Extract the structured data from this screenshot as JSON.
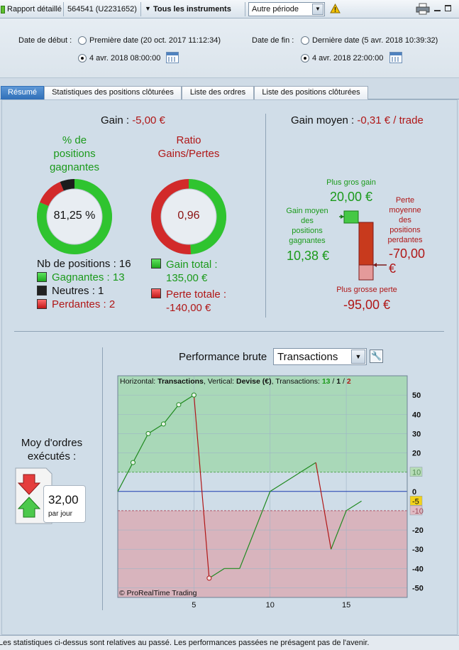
{
  "toolbar": {
    "title": "Rapport détaillé",
    "account": "564541 (U2231652)",
    "instruments": "Tous les instruments",
    "period": "Autre période"
  },
  "dates": {
    "start_label": "Date de début :",
    "start_option1": "Première date (20 oct. 2017 11:12:34)",
    "start_option2": "4 avr. 2018 08:00:00",
    "end_label": "Date de fin :",
    "end_option1": "Dernière date (5 avr. 2018 10:39:32)",
    "end_option2": "4 avr. 2018 22:00:00",
    "start_selected": 2,
    "end_selected": 2
  },
  "tabs": [
    {
      "label": "Résumé",
      "active": true
    },
    {
      "label": "Statistiques des positions clôturées",
      "active": false
    },
    {
      "label": "Liste des ordres",
      "active": false
    },
    {
      "label": "Liste des positions clôturées",
      "active": false
    }
  ],
  "summary": {
    "gain_label": "Gain : ",
    "gain_value": "-5,00 €",
    "pct_title_1": "% de",
    "pct_title_2": "positions",
    "pct_title_3": "gagnantes",
    "pct_value": "81,25 %",
    "ratio_title_1": "Ratio",
    "ratio_title_2": "Gains/Pertes",
    "ratio_value": "0,96",
    "nb_positions": "Nb de positions : 16",
    "gagnantes": "Gagnantes : 13",
    "neutres": "Neutres : 1",
    "perdantes": "Perdantes : 2",
    "gain_total_label": "Gain total :",
    "gain_total_value": "135,00 €",
    "perte_totale_label": "Perte totale :",
    "perte_totale_value": "-140,00 €",
    "donut_pct": {
      "win": 13,
      "neutral": 1,
      "loss": 2
    },
    "donut_ratio": {
      "gain": 135,
      "loss": 140
    }
  },
  "average": {
    "title_label": "Gain moyen : ",
    "title_value": "-0,31 € / trade",
    "biggest_gain_label": "Plus gros gain",
    "biggest_gain_value": "20,00 €",
    "avg_win_label_1": "Gain moyen",
    "avg_win_label_2": "des",
    "avg_win_label_3": "positions",
    "avg_win_label_4": "gagnantes",
    "avg_win_value": "10,38 €",
    "avg_loss_label_1": "Perte",
    "avg_loss_label_2": "moyenne",
    "avg_loss_label_3": "des",
    "avg_loss_label_4": "positions",
    "avg_loss_label_5": "perdantes",
    "avg_loss_value_1": "-70,00",
    "avg_loss_value_2": "€",
    "biggest_loss_label": "Plus grosse perte",
    "biggest_loss_value": "-95,00 €"
  },
  "orders": {
    "title_1": "Moy d'ordres",
    "title_2": "exécutés :",
    "value": "32,00",
    "unit": "par jour"
  },
  "performance": {
    "title": "Performance brute",
    "selector": "Transactions"
  },
  "chart_data": {
    "type": "line",
    "header_prefix": "Horizontal: ",
    "header_h": "Transactions",
    "header_mid": ", Vertical: ",
    "header_v": "Devise (€)",
    "header_tx": ", Transactions: ",
    "tx_win": "13",
    "tx_neutral": "1",
    "tx_loss": "2",
    "sep": " / ",
    "copyright": "© ProRealTime Trading",
    "x": [
      0,
      1,
      2,
      3,
      4,
      5,
      6,
      7,
      8,
      9,
      10,
      11,
      12,
      13,
      14,
      15,
      16
    ],
    "y": [
      0,
      15,
      30,
      35,
      45,
      50,
      -45,
      -40,
      -40,
      -20,
      0,
      5,
      10,
      15,
      -30,
      -10,
      -5
    ],
    "xticks": [
      "5",
      "10",
      "15"
    ],
    "yticks": [
      "50",
      "40",
      "30",
      "20",
      "10",
      "0",
      "-5",
      "-10",
      "-20",
      "-30",
      "-40",
      "-50"
    ],
    "xlim": [
      0,
      19
    ],
    "ylim": [
      -55,
      60
    ],
    "avg_gain_line": 10,
    "avg_loss_line": -10,
    "final_value": -5,
    "grid": true
  },
  "footer": "Les statistiques ci-dessus sont relatives au passé. Les performances passées ne présagent pas de l'avenir.",
  "colors": {
    "green": "#1b9a1b",
    "red": "#b01717",
    "green_zone": "#a9d8b8",
    "red_zone": "#d8b4bd",
    "tab_active": "#3a7bc4"
  }
}
